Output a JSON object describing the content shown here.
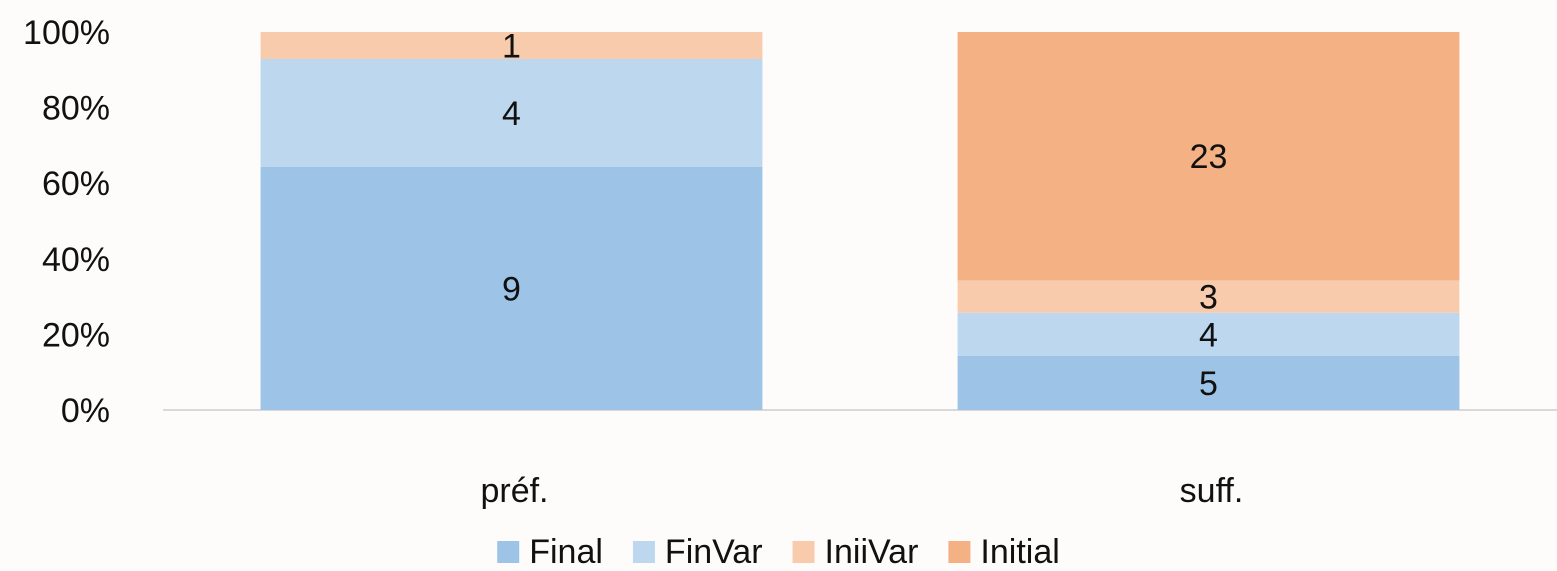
{
  "chart_data": {
    "type": "bar",
    "stacking": "percent",
    "categories": [
      "préf.",
      "suff."
    ],
    "series": [
      {
        "name": "Final",
        "color": "#9dc3e6",
        "values": [
          9,
          5
        ]
      },
      {
        "name": "FinVar",
        "color": "#bdd7ee",
        "values": [
          4,
          4
        ]
      },
      {
        "name": "IniiVar",
        "color": "#f8cbad",
        "values": [
          1,
          3
        ]
      },
      {
        "name": "Initial",
        "color": "#f4b183",
        "values": [
          null,
          23
        ]
      }
    ],
    "ylim": [
      0,
      100
    ],
    "yticks": [
      {
        "value": 0,
        "label": "0%"
      },
      {
        "value": 20,
        "label": "20%"
      },
      {
        "value": 40,
        "label": "40%"
      },
      {
        "value": 60,
        "label": "60%"
      },
      {
        "value": 80,
        "label": "80%"
      },
      {
        "value": 100,
        "label": "100%"
      }
    ],
    "legend": "bottom"
  }
}
